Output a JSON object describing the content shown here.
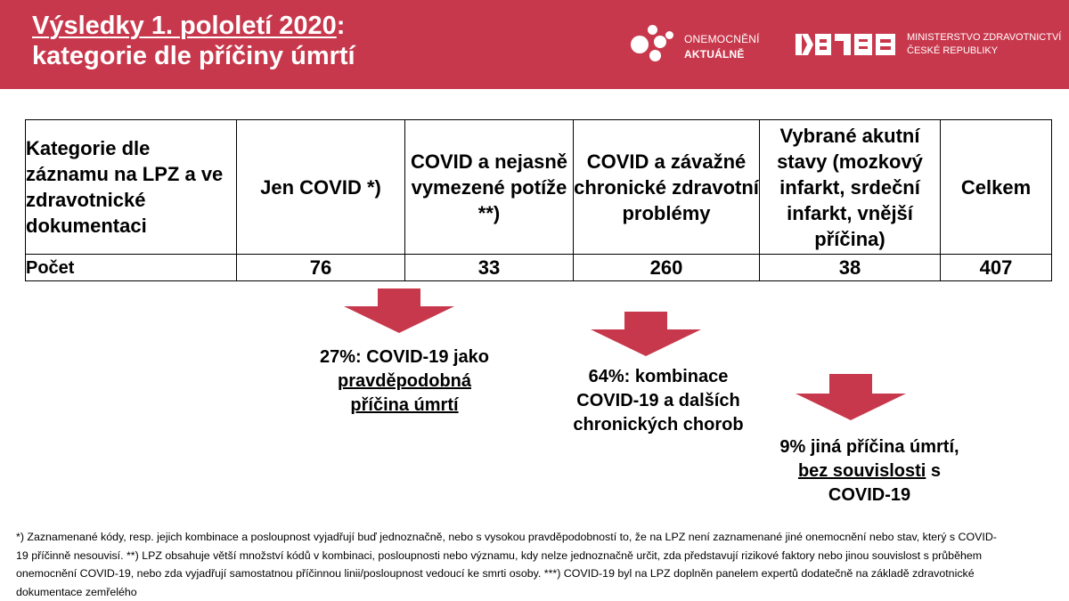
{
  "header": {
    "title_line1_main": "Výsledky 1. pololetí 2020",
    "title_line1_suffix": ":",
    "title_line2": "kategorie dle příčiny úmrtí",
    "logo_onemocneni_line1": "ONEMOCNĚNÍ",
    "logo_onemocneni_line2": "AKTUÁLNĚ",
    "logo_mzcr": "MZČR",
    "ministry_line1": "MINISTERSTVO ZDRAVOTNICTVÍ",
    "ministry_line2": "ČESKÉ REPUBLIKY",
    "colors": {
      "brand_red": "#c8384c",
      "arrow_red": "#c8384c"
    }
  },
  "table": {
    "header_label": "Kategorie dle záznamu na LPZ a ve zdravotnické dokumentaci",
    "columns": [
      "Jen COVID *)",
      "COVID a nejasně vymezené potíže **)",
      "COVID a závažné chronické zdravotní problémy",
      "Vybrané akutní stavy (mozkový infarkt, srdeční infarkt, vnější příčina)",
      "Celkem"
    ],
    "row_label": "Počet",
    "values": [
      "76",
      "33",
      "260",
      "38",
      "407"
    ]
  },
  "callouts": {
    "c1_line1": "27%: COVID-19 jako",
    "c1_line2": "pravděpodobná",
    "c1_line3": "příčina úmrtí",
    "c2_line1": "64%: kombinace",
    "c2_line2": "COVID-19 a dalších",
    "c2_line3": "chronických chorob",
    "c3_line1": "9% jiná příčina úmrtí,",
    "c3_line2_underlined": "bez souvislosti",
    "c3_line2_rest": " s",
    "c3_line3": "COVID-19"
  },
  "footnote": {
    "text": "*) Zaznamenané kódy, resp. jejich kombinace a posloupnost vyjadřují buď jednoznačně, nebo s vysokou pravděpodobností to, že na LPZ není zaznamenané jiné onemocnění nebo stav, který s COVID-19 příčinně nesouvisí. **) LPZ obsahuje větší množství kódů v kombinaci, posloupnosti nebo významu, kdy nelze jednoznačně určit, zda představují rizikové faktory nebo jinou souvislost s průběhem onemocnění COVID-19, nebo zda vyjadřují samostatnou příčinnou linii/posloupnost vedoucí ke smrti osoby. ***) COVID-19 byl na LPZ doplněn panelem expertů dodatečně na základě zdravotnické dokumentace zemřelého"
  }
}
